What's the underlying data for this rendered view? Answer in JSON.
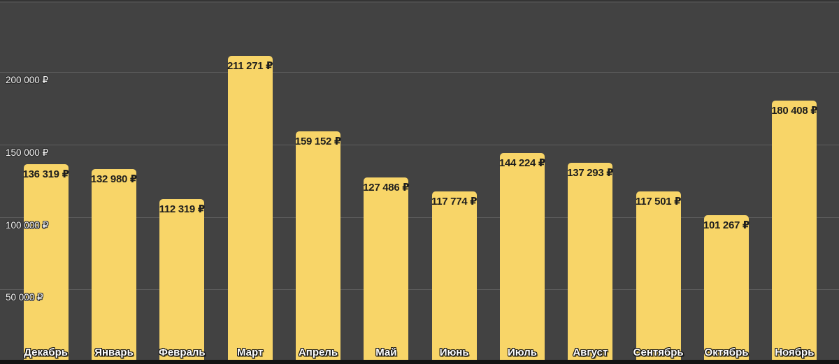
{
  "chart_data": {
    "type": "bar",
    "title": "",
    "xlabel": "",
    "ylabel": "",
    "currency": "₽",
    "grid": true,
    "legend": "none",
    "categories": [
      "Декабрь",
      "Январь",
      "Февраль",
      "Март",
      "Апрель",
      "Май",
      "Июнь",
      "Июль",
      "Август",
      "Сентябрь",
      "Октябрь",
      "Ноябрь"
    ],
    "values": [
      136319,
      132980,
      112319,
      211271,
      159152,
      127486,
      117774,
      144224,
      137293,
      117501,
      101267,
      180408
    ],
    "value_labels": [
      "136 319 ₽",
      "132 980 ₽",
      "112 319 ₽",
      "211 271 ₽",
      "159 152 ₽",
      "127 486 ₽",
      "117 774 ₽",
      "144 224 ₽",
      "137 293 ₽",
      "117 501 ₽",
      "101 267 ₽",
      "180 408 ₽"
    ],
    "y_axis": {
      "ylim": [
        0,
        250000
      ],
      "ticks": [
        {
          "value": 200000,
          "label": "200 000 ₽"
        },
        {
          "value": 150000,
          "label": "150 000 ₽"
        },
        {
          "value": 100000,
          "label": "100 000 ₽"
        },
        {
          "value": 50000,
          "label": "50 000 ₽"
        }
      ]
    },
    "colors": {
      "bar": "#F8D568",
      "background": "#424242",
      "gridline": "#5E5E5E",
      "bar_label_text": "#1E1E1E",
      "axis_label_text": "#F2F2F2",
      "category_label_text": "#FFFFFF",
      "bottom_strip": "#121212"
    }
  }
}
